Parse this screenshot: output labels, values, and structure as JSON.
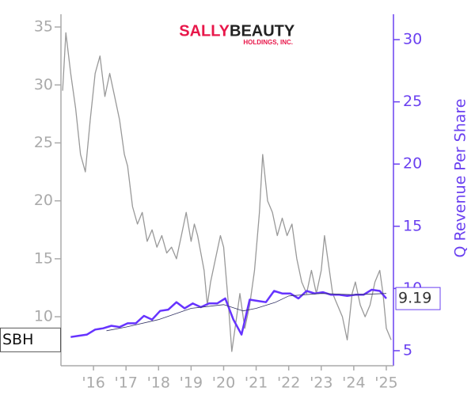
{
  "chart_data": {
    "type": "line",
    "logo": {
      "brand_a": "SALLY",
      "brand_b": "BEAUTY",
      "sub": "HOLDINGS, INC."
    },
    "ticker": "SBH",
    "y2_label": "Q Revenue Per Share",
    "xlim": [
      2015.0,
      2025.22
    ],
    "xticks": [
      {
        "value": 2016,
        "label": "'16"
      },
      {
        "value": 2017,
        "label": "'17"
      },
      {
        "value": 2018,
        "label": "'18"
      },
      {
        "value": 2019,
        "label": "'19"
      },
      {
        "value": 2020,
        "label": "'20"
      },
      {
        "value": 2021,
        "label": "'21"
      },
      {
        "value": 2022,
        "label": "'22"
      },
      {
        "value": 2023,
        "label": "'23"
      },
      {
        "value": 2024,
        "label": "'24"
      },
      {
        "value": 2025,
        "label": "'25"
      }
    ],
    "ylim": [
      5.77,
      36.1
    ],
    "yticks": [
      10,
      15,
      20,
      25,
      30,
      35
    ],
    "y2lim": [
      3.79,
      32.04
    ],
    "y2ticks": [
      5,
      10,
      15,
      20,
      25,
      30
    ],
    "series": [
      {
        "color": "#999999",
        "x": [
          2015.05,
          2015.15,
          2015.3,
          2015.45,
          2015.6,
          2015.75,
          2015.9,
          2016.05,
          2016.2,
          2016.35,
          2016.5,
          2016.65,
          2016.8,
          2016.95,
          2017.05,
          2017.2,
          2017.35,
          2017.5,
          2017.65,
          2017.8,
          2017.95,
          2018.1,
          2018.25,
          2018.4,
          2018.55,
          2018.7,
          2018.85,
          2019.0,
          2019.1,
          2019.2,
          2019.4,
          2019.5,
          2019.6,
          2019.75,
          2019.9,
          2020.0,
          2020.15,
          2020.25,
          2020.35,
          2020.5,
          2020.65,
          2020.8,
          2020.95,
          2021.1,
          2021.2,
          2021.35,
          2021.5,
          2021.65,
          2021.8,
          2021.95,
          2022.1,
          2022.25,
          2022.4,
          2022.55,
          2022.7,
          2022.85,
          2023.0,
          2023.1,
          2023.2,
          2023.35,
          2023.5,
          2023.65,
          2023.8,
          2023.95,
          2024.05,
          2024.2,
          2024.35,
          2024.5,
          2024.65,
          2024.8,
          2024.9,
          2025.0,
          2025.15
        ],
        "values": [
          29.5,
          34.5,
          31,
          28,
          24,
          22.5,
          27,
          31,
          32.5,
          29,
          31,
          29,
          27,
          24,
          23,
          19.5,
          18,
          19,
          16.5,
          17.5,
          16,
          17,
          15.5,
          16,
          15,
          17,
          19,
          16.5,
          18,
          17,
          14,
          11,
          13,
          15,
          17,
          16,
          11,
          7,
          9,
          12,
          9,
          11,
          14,
          19,
          24,
          20,
          19,
          17,
          18.5,
          17,
          18,
          15,
          13,
          12,
          14,
          12,
          14,
          17,
          15,
          12,
          11,
          10,
          8,
          12,
          13,
          11,
          10,
          11,
          13,
          14,
          12,
          9,
          8
        ]
      },
      {
        "color": "#6633ff",
        "axis": "y2",
        "x": [
          2015.3,
          2015.55,
          2015.8,
          2016.05,
          2016.3,
          2016.55,
          2016.8,
          2017.05,
          2017.3,
          2017.55,
          2017.8,
          2018.05,
          2018.3,
          2018.55,
          2018.8,
          2019.05,
          2019.3,
          2019.55,
          2019.8,
          2020.05,
          2020.3,
          2020.55,
          2020.8,
          2021.05,
          2021.3,
          2021.55,
          2021.8,
          2022.05,
          2022.3,
          2022.55,
          2022.8,
          2023.05,
          2023.3,
          2023.55,
          2023.8,
          2024.05,
          2024.3,
          2024.55,
          2024.8,
          2025.0
        ],
        "values": [
          6.1,
          6.2,
          6.3,
          6.7,
          6.8,
          7.0,
          6.9,
          7.2,
          7.2,
          7.8,
          7.5,
          8.2,
          8.3,
          8.9,
          8.4,
          8.8,
          8.5,
          8.8,
          8.8,
          9.2,
          7.5,
          6.3,
          9.1,
          9.0,
          8.9,
          9.8,
          9.6,
          9.6,
          9.2,
          9.8,
          9.6,
          9.7,
          9.5,
          9.5,
          9.4,
          9.5,
          9.5,
          9.9,
          9.8,
          9.19
        ]
      },
      {
        "color": "#333366",
        "axis": "y2",
        "x": [
          2016.4,
          2017,
          2018,
          2019,
          2020,
          2020.6,
          2021,
          2021.6,
          2022,
          2023,
          2024,
          2025
        ],
        "values": [
          6.6,
          6.9,
          7.5,
          8.4,
          8.7,
          8.2,
          8.4,
          8.9,
          9.4,
          9.6,
          9.5,
          9.6
        ]
      }
    ]
  }
}
